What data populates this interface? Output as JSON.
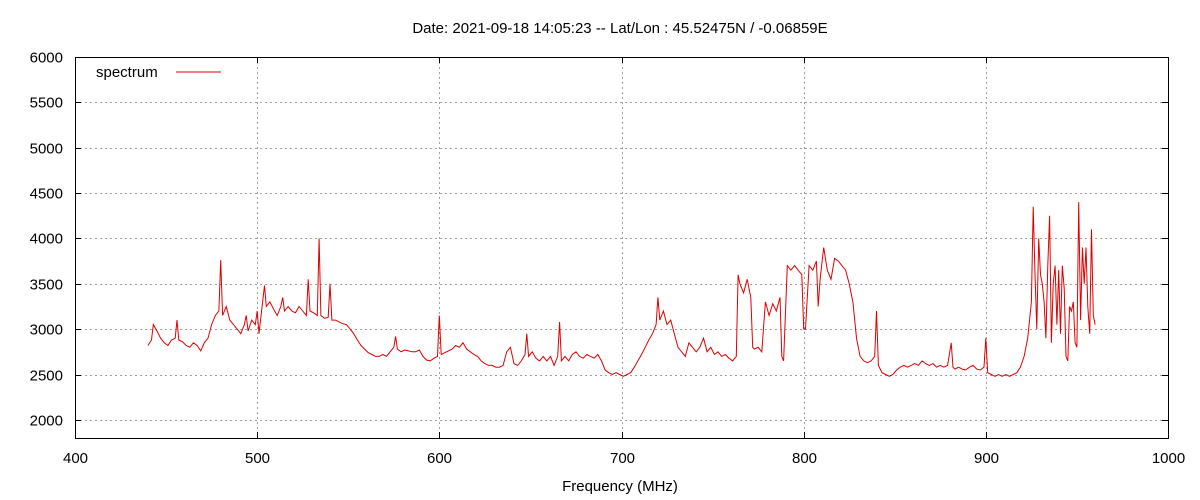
{
  "chart_data": {
    "type": "line",
    "title": "Date: 2021-09-18 14:05:23  --  Lat/Lon : 45.52475N / -0.06859E",
    "xlabel": "Frequency (MHz)",
    "ylabel": "",
    "xlim": [
      400,
      1000
    ],
    "ylim": [
      1800,
      6000
    ],
    "xticks": [
      400,
      500,
      600,
      700,
      800,
      900,
      1000
    ],
    "yticks": [
      2000,
      2500,
      3000,
      3500,
      4000,
      4500,
      5000,
      5500,
      6000
    ],
    "grid": true,
    "legend_position": "top-left",
    "series": [
      {
        "name": "spectrum",
        "color": "#e00000",
        "points": [
          [
            440,
            2820
          ],
          [
            442,
            2880
          ],
          [
            443,
            3050
          ],
          [
            445,
            2980
          ],
          [
            447,
            2900
          ],
          [
            449,
            2850
          ],
          [
            451,
            2820
          ],
          [
            453,
            2880
          ],
          [
            455,
            2900
          ],
          [
            456,
            3100
          ],
          [
            457,
            2880
          ],
          [
            459,
            2860
          ],
          [
            461,
            2820
          ],
          [
            463,
            2800
          ],
          [
            465,
            2850
          ],
          [
            467,
            2820
          ],
          [
            469,
            2760
          ],
          [
            471,
            2850
          ],
          [
            473,
            2900
          ],
          [
            475,
            3050
          ],
          [
            477,
            3150
          ],
          [
            479,
            3200
          ],
          [
            480,
            3760
          ],
          [
            481,
            3150
          ],
          [
            483,
            3250
          ],
          [
            485,
            3100
          ],
          [
            487,
            3050
          ],
          [
            489,
            3000
          ],
          [
            491,
            2950
          ],
          [
            493,
            3050
          ],
          [
            494,
            3150
          ],
          [
            495,
            2980
          ],
          [
            497,
            3100
          ],
          [
            499,
            3050
          ],
          [
            500,
            3200
          ],
          [
            501,
            2950
          ],
          [
            503,
            3300
          ],
          [
            504,
            3480
          ],
          [
            505,
            3250
          ],
          [
            507,
            3300
          ],
          [
            509,
            3220
          ],
          [
            511,
            3150
          ],
          [
            513,
            3250
          ],
          [
            514,
            3350
          ],
          [
            515,
            3200
          ],
          [
            517,
            3250
          ],
          [
            519,
            3200
          ],
          [
            521,
            3180
          ],
          [
            523,
            3250
          ],
          [
            525,
            3200
          ],
          [
            527,
            3150
          ],
          [
            528,
            3550
          ],
          [
            529,
            3200
          ],
          [
            531,
            3180
          ],
          [
            533,
            3150
          ],
          [
            534,
            4000
          ],
          [
            535,
            3150
          ],
          [
            537,
            3120
          ],
          [
            539,
            3130
          ],
          [
            540,
            3500
          ],
          [
            541,
            3100
          ],
          [
            543,
            3100
          ],
          [
            545,
            3080
          ],
          [
            547,
            3060
          ],
          [
            549,
            3050
          ],
          [
            551,
            3000
          ],
          [
            553,
            2950
          ],
          [
            555,
            2880
          ],
          [
            557,
            2820
          ],
          [
            559,
            2780
          ],
          [
            561,
            2740
          ],
          [
            563,
            2720
          ],
          [
            565,
            2700
          ],
          [
            567,
            2700
          ],
          [
            569,
            2720
          ],
          [
            571,
            2700
          ],
          [
            573,
            2750
          ],
          [
            575,
            2800
          ],
          [
            576,
            2920
          ],
          [
            577,
            2780
          ],
          [
            579,
            2750
          ],
          [
            581,
            2770
          ],
          [
            583,
            2760
          ],
          [
            585,
            2750
          ],
          [
            587,
            2750
          ],
          [
            589,
            2770
          ],
          [
            591,
            2700
          ],
          [
            593,
            2660
          ],
          [
            595,
            2650
          ],
          [
            597,
            2680
          ],
          [
            599,
            2700
          ],
          [
            600,
            3150
          ],
          [
            601,
            2720
          ],
          [
            603,
            2740
          ],
          [
            605,
            2760
          ],
          [
            607,
            2780
          ],
          [
            609,
            2820
          ],
          [
            611,
            2800
          ],
          [
            613,
            2850
          ],
          [
            615,
            2780
          ],
          [
            617,
            2750
          ],
          [
            619,
            2720
          ],
          [
            621,
            2700
          ],
          [
            623,
            2650
          ],
          [
            625,
            2620
          ],
          [
            627,
            2600
          ],
          [
            629,
            2600
          ],
          [
            631,
            2580
          ],
          [
            633,
            2580
          ],
          [
            635,
            2600
          ],
          [
            637,
            2750
          ],
          [
            639,
            2800
          ],
          [
            641,
            2620
          ],
          [
            643,
            2600
          ],
          [
            645,
            2650
          ],
          [
            647,
            2720
          ],
          [
            648,
            2950
          ],
          [
            649,
            2700
          ],
          [
            651,
            2750
          ],
          [
            653,
            2680
          ],
          [
            655,
            2650
          ],
          [
            657,
            2700
          ],
          [
            659,
            2650
          ],
          [
            661,
            2700
          ],
          [
            663,
            2600
          ],
          [
            665,
            2700
          ],
          [
            666,
            3080
          ],
          [
            667,
            2650
          ],
          [
            669,
            2700
          ],
          [
            671,
            2650
          ],
          [
            673,
            2720
          ],
          [
            675,
            2750
          ],
          [
            677,
            2700
          ],
          [
            679,
            2680
          ],
          [
            681,
            2720
          ],
          [
            683,
            2700
          ],
          [
            685,
            2680
          ],
          [
            687,
            2720
          ],
          [
            689,
            2650
          ],
          [
            691,
            2550
          ],
          [
            693,
            2520
          ],
          [
            695,
            2500
          ],
          [
            697,
            2520
          ],
          [
            699,
            2500
          ],
          [
            701,
            2480
          ],
          [
            703,
            2500
          ],
          [
            705,
            2520
          ],
          [
            707,
            2580
          ],
          [
            709,
            2650
          ],
          [
            711,
            2720
          ],
          [
            713,
            2800
          ],
          [
            715,
            2880
          ],
          [
            717,
            2950
          ],
          [
            719,
            3050
          ],
          [
            720,
            3350
          ],
          [
            721,
            3100
          ],
          [
            723,
            3200
          ],
          [
            725,
            3050
          ],
          [
            727,
            3100
          ],
          [
            729,
            2950
          ],
          [
            731,
            2800
          ],
          [
            733,
            2750
          ],
          [
            735,
            2700
          ],
          [
            737,
            2850
          ],
          [
            739,
            2800
          ],
          [
            741,
            2750
          ],
          [
            743,
            2800
          ],
          [
            745,
            2900
          ],
          [
            747,
            2750
          ],
          [
            749,
            2800
          ],
          [
            751,
            2720
          ],
          [
            753,
            2750
          ],
          [
            755,
            2700
          ],
          [
            757,
            2720
          ],
          [
            759,
            2680
          ],
          [
            761,
            2650
          ],
          [
            763,
            2700
          ],
          [
            764,
            3600
          ],
          [
            765,
            3500
          ],
          [
            767,
            3400
          ],
          [
            769,
            3550
          ],
          [
            771,
            3350
          ],
          [
            772,
            2800
          ],
          [
            773,
            2780
          ],
          [
            775,
            2800
          ],
          [
            777,
            2750
          ],
          [
            779,
            3300
          ],
          [
            781,
            3150
          ],
          [
            783,
            3280
          ],
          [
            785,
            3200
          ],
          [
            787,
            3350
          ],
          [
            788,
            2700
          ],
          [
            789,
            2650
          ],
          [
            791,
            3700
          ],
          [
            793,
            3650
          ],
          [
            795,
            3700
          ],
          [
            797,
            3650
          ],
          [
            799,
            3600
          ],
          [
            800,
            3000
          ],
          [
            801,
            3000
          ],
          [
            803,
            3700
          ],
          [
            805,
            3650
          ],
          [
            807,
            3750
          ],
          [
            808,
            3250
          ],
          [
            809,
            3550
          ],
          [
            811,
            3900
          ],
          [
            813,
            3650
          ],
          [
            815,
            3550
          ],
          [
            817,
            3780
          ],
          [
            819,
            3750
          ],
          [
            821,
            3700
          ],
          [
            823,
            3650
          ],
          [
            825,
            3500
          ],
          [
            827,
            3300
          ],
          [
            829,
            2900
          ],
          [
            831,
            2700
          ],
          [
            833,
            2650
          ],
          [
            835,
            2630
          ],
          [
            837,
            2650
          ],
          [
            839,
            2700
          ],
          [
            840,
            3200
          ],
          [
            841,
            2600
          ],
          [
            843,
            2520
          ],
          [
            845,
            2500
          ],
          [
            847,
            2480
          ],
          [
            849,
            2500
          ],
          [
            851,
            2550
          ],
          [
            853,
            2580
          ],
          [
            855,
            2600
          ],
          [
            857,
            2580
          ],
          [
            859,
            2600
          ],
          [
            861,
            2620
          ],
          [
            863,
            2600
          ],
          [
            865,
            2650
          ],
          [
            867,
            2620
          ],
          [
            869,
            2600
          ],
          [
            871,
            2620
          ],
          [
            873,
            2580
          ],
          [
            875,
            2600
          ],
          [
            877,
            2580
          ],
          [
            879,
            2600
          ],
          [
            881,
            2850
          ],
          [
            882,
            2580
          ],
          [
            883,
            2560
          ],
          [
            885,
            2580
          ],
          [
            887,
            2560
          ],
          [
            889,
            2550
          ],
          [
            891,
            2580
          ],
          [
            893,
            2600
          ],
          [
            895,
            2560
          ],
          [
            897,
            2550
          ],
          [
            899,
            2580
          ],
          [
            900,
            2900
          ],
          [
            901,
            2520
          ],
          [
            903,
            2500
          ],
          [
            905,
            2480
          ],
          [
            907,
            2500
          ],
          [
            909,
            2480
          ],
          [
            911,
            2500
          ],
          [
            913,
            2480
          ],
          [
            915,
            2500
          ],
          [
            917,
            2520
          ],
          [
            919,
            2580
          ],
          [
            921,
            2700
          ],
          [
            923,
            2900
          ],
          [
            925,
            3300
          ],
          [
            926,
            4350
          ],
          [
            927,
            3600
          ],
          [
            928,
            3000
          ],
          [
            929,
            4000
          ],
          [
            930,
            3600
          ],
          [
            931,
            3500
          ],
          [
            932,
            3300
          ],
          [
            933,
            2900
          ],
          [
            934,
            3700
          ],
          [
            935,
            4250
          ],
          [
            936,
            2850
          ],
          [
            937,
            3500
          ],
          [
            938,
            3700
          ],
          [
            939,
            3050
          ],
          [
            940,
            3650
          ],
          [
            941,
            2950
          ],
          [
            942,
            3700
          ],
          [
            943,
            3450
          ],
          [
            944,
            2700
          ],
          [
            945,
            2650
          ],
          [
            946,
            3250
          ],
          [
            947,
            3200
          ],
          [
            948,
            3300
          ],
          [
            949,
            2850
          ],
          [
            950,
            2800
          ],
          [
            951,
            4400
          ],
          [
            952,
            3100
          ],
          [
            953,
            3900
          ],
          [
            954,
            3500
          ],
          [
            955,
            3900
          ],
          [
            956,
            3250
          ],
          [
            957,
            2950
          ],
          [
            958,
            4100
          ],
          [
            959,
            3150
          ],
          [
            960,
            3050
          ]
        ]
      }
    ]
  }
}
